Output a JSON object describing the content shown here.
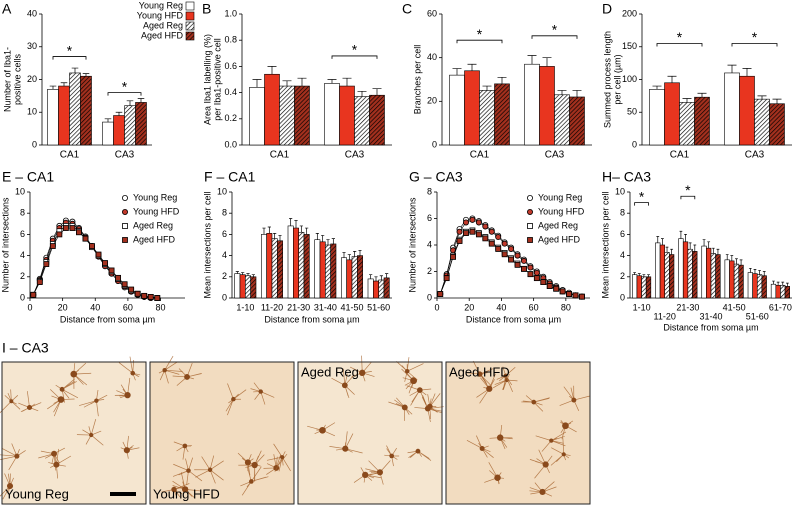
{
  "chart_data": [
    {
      "type": "bar",
      "panel": "A",
      "ylabel": [
        "Number of Iba1-",
        "positive cells"
      ],
      "categories": [
        "CA1",
        "CA3"
      ],
      "ylim": [
        0,
        40
      ],
      "yticks": [
        0,
        10,
        20,
        30,
        40
      ],
      "legend": "upper right",
      "series": [
        {
          "name": "Young Reg",
          "color": "#ffffff",
          "pattern": "solid",
          "values": [
            17,
            7
          ],
          "errors": [
            1,
            1
          ]
        },
        {
          "name": "Young HFD",
          "color": "#e8351f",
          "pattern": "solid",
          "values": [
            18,
            9
          ],
          "errors": [
            1,
            1
          ]
        },
        {
          "name": "Aged Reg",
          "color": "#ffffff",
          "pattern": "hatch",
          "values": [
            22,
            12
          ],
          "errors": [
            1.5,
            1.5
          ]
        },
        {
          "name": "Aged HFD",
          "color": "#a3301e",
          "pattern": "hatch",
          "values": [
            21,
            13
          ],
          "errors": [
            0.8,
            1.2
          ]
        }
      ],
      "significance": [
        {
          "label": "*",
          "y": 27
        },
        {
          "label": "*",
          "y": 16
        }
      ]
    },
    {
      "type": "bar",
      "panel": "B",
      "ylabel": [
        "Area Iba1 labelling (%)",
        "per Iba1-positive cell"
      ],
      "categories": [
        "CA1",
        "CA3"
      ],
      "ylim": [
        0,
        1
      ],
      "yticks": [
        {
          "value": 0,
          "label": "0.0"
        },
        0.2,
        0.4,
        0.6,
        0.8,
        {
          "value": 1,
          "label": "1.0"
        }
      ],
      "series": [
        {
          "color": "#ffffff",
          "pattern": "solid",
          "values": [
            0.44,
            0.47
          ],
          "errors": [
            0.06,
            0.03
          ]
        },
        {
          "color": "#e8351f",
          "pattern": "solid",
          "values": [
            0.54,
            0.45
          ],
          "errors": [
            0.06,
            0.06
          ]
        },
        {
          "color": "#ffffff",
          "pattern": "hatch",
          "values": [
            0.45,
            0.37
          ],
          "errors": [
            0.04,
            0.04
          ]
        },
        {
          "color": "#a3301e",
          "pattern": "hatch",
          "values": [
            0.45,
            0.38
          ],
          "errors": [
            0.06,
            0.05
          ]
        }
      ],
      "significance": [
        null,
        {
          "label": "*",
          "y": 0.68
        }
      ]
    },
    {
      "type": "bar",
      "panel": "C",
      "ylabel": "Branches per cell",
      "categories": [
        "CA1",
        "CA3"
      ],
      "ylim": [
        0,
        60
      ],
      "yticks": [
        0,
        20,
        40,
        60
      ],
      "series": [
        {
          "color": "#ffffff",
          "pattern": "solid",
          "values": [
            32,
            37
          ],
          "errors": [
            3,
            4
          ]
        },
        {
          "color": "#e8351f",
          "pattern": "solid",
          "values": [
            34,
            36
          ],
          "errors": [
            3,
            4
          ]
        },
        {
          "color": "#ffffff",
          "pattern": "hatch",
          "values": [
            25,
            23
          ],
          "errors": [
            2,
            2
          ]
        },
        {
          "color": "#a3301e",
          "pattern": "hatch",
          "values": [
            28,
            22
          ],
          "errors": [
            3,
            3
          ]
        }
      ],
      "significance": [
        {
          "label": "*",
          "y": 48
        },
        {
          "label": "*",
          "y": 50
        }
      ]
    },
    {
      "type": "bar",
      "panel": "D",
      "ylabel": [
        "Summed process length",
        "per cell (µm)"
      ],
      "categories": [
        "CA1",
        "CA3"
      ],
      "ylim": [
        0,
        200
      ],
      "yticks": [
        0,
        50,
        100,
        150,
        200
      ],
      "series": [
        {
          "color": "#ffffff",
          "pattern": "solid",
          "values": [
            85,
            110
          ],
          "errors": [
            5,
            12
          ]
        },
        {
          "color": "#e8351f",
          "pattern": "solid",
          "values": [
            95,
            105
          ],
          "errors": [
            10,
            12
          ]
        },
        {
          "color": "#ffffff",
          "pattern": "hatch",
          "values": [
            65,
            70
          ],
          "errors": [
            6,
            5
          ]
        },
        {
          "color": "#a3301e",
          "pattern": "hatch",
          "values": [
            73,
            63
          ],
          "errors": [
            6,
            7
          ]
        }
      ],
      "significance": [
        {
          "label": "*",
          "y": 155
        },
        {
          "label": "*",
          "y": 155
        }
      ]
    },
    {
      "type": "line",
      "title": "E – CA1",
      "ylabel": "Number of intersections",
      "xlabel": "Distance from soma µm",
      "xlim": [
        0,
        95
      ],
      "xticks": [
        0,
        20,
        40,
        60,
        80
      ],
      "ylim": [
        0,
        10
      ],
      "yticks": [
        0,
        2,
        4,
        6,
        8,
        10
      ],
      "legend": "upper right",
      "x": [
        2,
        6,
        10,
        14,
        18,
        22,
        26,
        30,
        34,
        38,
        42,
        46,
        50,
        54,
        58,
        62,
        66,
        70,
        74,
        78
      ],
      "series": [
        {
          "name": "Young Reg",
          "color": "#ffffff",
          "marker": "circle",
          "values": [
            0.3,
            1.8,
            3.8,
            5.6,
            6.8,
            7.3,
            7.2,
            6.6,
            5.8,
            4.9,
            4.0,
            3.1,
            2.3,
            1.6,
            1.0,
            0.6,
            0.3,
            0.1,
            0.0,
            0.0
          ]
        },
        {
          "name": "Young HFD",
          "color": "#c0392b",
          "marker": "circle",
          "values": [
            0.3,
            1.7,
            3.6,
            5.4,
            6.6,
            7.1,
            7.0,
            6.5,
            5.7,
            4.8,
            3.9,
            3.0,
            2.3,
            1.6,
            1.1,
            0.6,
            0.3,
            0.1,
            0.0,
            0.0
          ]
        },
        {
          "name": "Aged Reg",
          "color": "#ffffff",
          "marker": "square",
          "values": [
            0.3,
            1.6,
            3.4,
            5.1,
            6.3,
            6.8,
            6.8,
            6.3,
            5.6,
            4.8,
            4.0,
            3.2,
            2.5,
            1.8,
            1.2,
            0.7,
            0.4,
            0.2,
            0.1,
            0.0
          ]
        },
        {
          "name": "Aged HFD",
          "color": "#a3301e",
          "marker": "square",
          "values": [
            0.3,
            1.5,
            3.2,
            4.9,
            6.0,
            6.6,
            6.6,
            6.2,
            5.6,
            4.9,
            4.1,
            3.3,
            2.6,
            1.9,
            1.3,
            0.8,
            0.4,
            0.2,
            0.1,
            0.0
          ]
        }
      ]
    },
    {
      "type": "bar",
      "title": "F – CA1",
      "ylabel": "Mean intersections per cell",
      "xlabel": "Distance from soma µm",
      "categories": [
        "1-10",
        "11-20",
        "21-30",
        "31-40",
        "41-50",
        "51-60"
      ],
      "ylim": [
        0,
        10
      ],
      "yticks": [
        0,
        2,
        4,
        6,
        8,
        10
      ],
      "series": [
        {
          "color": "#ffffff",
          "pattern": "solid",
          "values": [
            2.3,
            6.0,
            6.8,
            5.5,
            3.8,
            1.8
          ],
          "errors": [
            0.2,
            0.6,
            0.7,
            0.6,
            0.5,
            0.4
          ]
        },
        {
          "color": "#e8351f",
          "pattern": "solid",
          "values": [
            2.2,
            6.1,
            6.6,
            5.3,
            3.6,
            1.6
          ],
          "errors": [
            0.2,
            0.6,
            0.7,
            0.6,
            0.5,
            0.4
          ]
        },
        {
          "color": "#ffffff",
          "pattern": "hatch",
          "values": [
            2.1,
            5.6,
            6.2,
            5.0,
            3.9,
            1.7
          ],
          "errors": [
            0.2,
            0.5,
            0.6,
            0.5,
            0.5,
            0.4
          ]
        },
        {
          "color": "#a3301e",
          "pattern": "hatch",
          "values": [
            2.0,
            5.4,
            6.0,
            5.1,
            4.0,
            1.9
          ],
          "errors": [
            0.2,
            0.5,
            0.6,
            0.5,
            0.5,
            0.4
          ]
        }
      ]
    },
    {
      "type": "line",
      "title": "G – CA3",
      "ylabel": "Number of intersections",
      "xlabel": "Distance from soma µm",
      "xlim": [
        0,
        95
      ],
      "xticks": [
        0,
        20,
        40,
        60,
        80
      ],
      "ylim": [
        0,
        8
      ],
      "yticks": [
        0,
        2,
        4,
        6,
        8
      ],
      "legend": "upper right",
      "x": [
        2,
        6,
        10,
        14,
        18,
        22,
        26,
        30,
        34,
        38,
        42,
        46,
        50,
        54,
        58,
        62,
        66,
        70,
        74,
        78,
        82,
        86,
        90
      ],
      "series": [
        {
          "name": "Young Reg",
          "color": "#ffffff",
          "marker": "circle",
          "values": [
            0.3,
            1.8,
            3.8,
            5.2,
            5.9,
            6.0,
            5.8,
            5.5,
            5.1,
            4.7,
            4.2,
            3.8,
            3.3,
            2.9,
            2.4,
            2.0,
            1.6,
            1.2,
            0.9,
            0.6,
            0.4,
            0.2,
            0.1
          ]
        },
        {
          "name": "Young HFD",
          "color": "#c0392b",
          "marker": "circle",
          "values": [
            0.3,
            1.7,
            3.6,
            5.0,
            5.7,
            5.9,
            5.7,
            5.4,
            5.0,
            4.6,
            4.1,
            3.7,
            3.2,
            2.8,
            2.3,
            1.9,
            1.5,
            1.1,
            0.8,
            0.5,
            0.3,
            0.2,
            0.1
          ]
        },
        {
          "name": "Aged Reg",
          "color": "#ffffff",
          "marker": "square",
          "values": [
            0.3,
            1.5,
            3.2,
            4.4,
            5.0,
            5.1,
            4.9,
            4.6,
            4.2,
            3.8,
            3.4,
            3.0,
            2.6,
            2.2,
            1.8,
            1.5,
            1.2,
            0.9,
            0.7,
            0.5,
            0.3,
            0.2,
            0.1
          ]
        },
        {
          "name": "Aged HFD",
          "color": "#a3301e",
          "marker": "square",
          "values": [
            0.3,
            1.5,
            3.1,
            4.3,
            4.9,
            5.0,
            4.8,
            4.5,
            4.1,
            3.7,
            3.3,
            2.9,
            2.5,
            2.2,
            1.8,
            1.5,
            1.2,
            0.9,
            0.7,
            0.5,
            0.3,
            0.2,
            0.1
          ]
        }
      ]
    },
    {
      "type": "bar",
      "title": "H– CA3",
      "ylabel": "Mean intersections per cell",
      "xlabel": "Distance from soma µm",
      "categories": [
        "1-10",
        "11-20",
        "21-30",
        "31-40",
        "41-50",
        "51-60",
        "61-70"
      ],
      "stagger_labels": true,
      "ylim": [
        0,
        10
      ],
      "yticks": [
        0,
        2,
        4,
        6,
        8,
        10
      ],
      "series": [
        {
          "color": "#ffffff",
          "pattern": "solid",
          "values": [
            2.2,
            5.2,
            5.6,
            4.9,
            3.6,
            2.4,
            1.3
          ],
          "errors": [
            0.2,
            0.6,
            0.7,
            0.6,
            0.5,
            0.4,
            0.3
          ]
        },
        {
          "color": "#e8351f",
          "pattern": "solid",
          "values": [
            2.1,
            5.0,
            5.3,
            4.7,
            3.5,
            2.3,
            1.2
          ],
          "errors": [
            0.2,
            0.6,
            0.7,
            0.6,
            0.5,
            0.4,
            0.3
          ]
        },
        {
          "color": "#ffffff",
          "pattern": "hatch",
          "values": [
            2.0,
            4.3,
            4.6,
            4.2,
            3.2,
            2.2,
            1.2
          ],
          "errors": [
            0.2,
            0.5,
            0.6,
            0.5,
            0.5,
            0.4,
            0.3
          ]
        },
        {
          "color": "#a3301e",
          "pattern": "hatch",
          "values": [
            2.0,
            4.1,
            4.4,
            4.1,
            3.1,
            2.1,
            1.1
          ],
          "errors": [
            0.2,
            0.5,
            0.6,
            0.5,
            0.5,
            0.4,
            0.3
          ]
        }
      ],
      "significance": [
        {
          "label": "*",
          "y": 9.0
        },
        null,
        {
          "label": "*",
          "y": 9.6
        },
        null,
        null,
        null,
        null
      ]
    }
  ],
  "micrographs": {
    "title": "I – CA3",
    "labels": [
      "Young Reg",
      "Young HFD",
      "Aged Reg",
      "Aged HFD"
    ]
  }
}
